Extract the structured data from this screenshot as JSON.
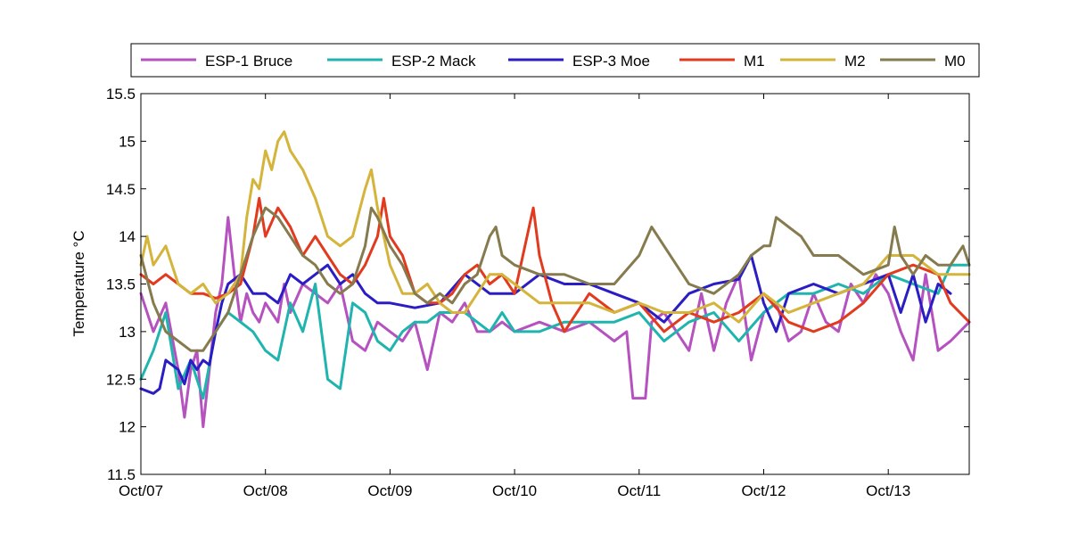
{
  "chart_data": {
    "type": "line",
    "title": "",
    "xlabel": "",
    "ylabel": "Temperature °C",
    "xlim": [
      0,
      6.65
    ],
    "ylim": [
      11.5,
      15.5
    ],
    "x_tick_labels": [
      "Oct/07",
      "Oct/08",
      "Oct/09",
      "Oct/10",
      "Oct/11",
      "Oct/12",
      "Oct/13"
    ],
    "x_tick_values": [
      0,
      1,
      2,
      3,
      4,
      5,
      6
    ],
    "y_ticks": [
      11.5,
      12,
      12.5,
      13,
      13.5,
      14,
      14.5,
      15,
      15.5
    ],
    "grid": false,
    "legend": {
      "position": "top",
      "orientation": "horizontal"
    },
    "series": [
      {
        "name": "ESP-1 Bruce",
        "color": "#B552C0",
        "x": [
          0,
          0.1,
          0.2,
          0.3,
          0.35,
          0.4,
          0.45,
          0.5,
          0.55,
          0.6,
          0.65,
          0.7,
          0.75,
          0.8,
          0.85,
          0.9,
          0.95,
          1.0,
          1.05,
          1.1,
          1.15,
          1.2,
          1.3,
          1.4,
          1.5,
          1.6,
          1.7,
          1.8,
          1.9,
          2.0,
          2.1,
          2.2,
          2.3,
          2.4,
          2.5,
          2.6,
          2.7,
          2.8,
          2.9,
          3.0,
          3.2,
          3.4,
          3.6,
          3.8,
          3.9,
          3.95,
          4.0,
          4.05,
          4.1,
          4.2,
          4.3,
          4.4,
          4.5,
          4.6,
          4.7,
          4.8,
          4.9,
          5.0,
          5.1,
          5.2,
          5.3,
          5.4,
          5.5,
          5.6,
          5.7,
          5.8,
          5.9,
          6.0,
          6.1,
          6.2,
          6.3,
          6.4,
          6.5,
          6.65
        ],
        "values": [
          13.4,
          13.0,
          13.3,
          12.6,
          12.1,
          12.6,
          12.8,
          12.0,
          12.6,
          13.2,
          13.5,
          14.2,
          13.6,
          13.1,
          13.4,
          13.2,
          13.1,
          13.3,
          13.2,
          13.1,
          13.5,
          13.2,
          13.5,
          13.4,
          13.3,
          13.5,
          12.9,
          12.8,
          13.1,
          13.0,
          12.9,
          13.1,
          12.6,
          13.2,
          13.1,
          13.3,
          13.0,
          13.0,
          13.1,
          13.0,
          13.1,
          13.0,
          13.1,
          12.9,
          13.0,
          12.3,
          12.3,
          12.3,
          13.1,
          13.2,
          13.0,
          12.8,
          13.4,
          12.8,
          13.3,
          13.6,
          12.7,
          13.2,
          13.3,
          12.9,
          13.0,
          13.4,
          13.1,
          13.0,
          13.5,
          13.3,
          13.6,
          13.4,
          13.0,
          12.7,
          13.6,
          12.8,
          12.9,
          13.1
        ]
      },
      {
        "name": "ESP-2 Mack",
        "color": "#1FB5AE",
        "x": [
          0,
          0.1,
          0.2,
          0.3,
          0.4,
          0.5,
          0.6,
          0.7,
          0.8,
          0.9,
          1.0,
          1.1,
          1.2,
          1.3,
          1.4,
          1.5,
          1.6,
          1.7,
          1.8,
          1.9,
          2.0,
          2.1,
          2.2,
          2.3,
          2.4,
          2.5,
          2.6,
          2.7,
          2.8,
          2.9,
          3.0,
          3.2,
          3.4,
          3.6,
          3.8,
          4.0,
          4.2,
          4.4,
          4.6,
          4.8,
          5.0,
          5.2,
          5.4,
          5.6,
          5.8,
          6.0,
          6.2,
          6.4,
          6.5,
          6.65
        ],
        "values": [
          12.5,
          12.8,
          13.2,
          12.4,
          12.7,
          12.3,
          13.0,
          13.2,
          13.1,
          13.0,
          12.8,
          12.7,
          13.3,
          13.0,
          13.5,
          12.5,
          12.4,
          13.3,
          13.2,
          12.9,
          12.8,
          13.0,
          13.1,
          13.1,
          13.2,
          13.2,
          13.2,
          13.1,
          13.0,
          13.2,
          13.0,
          13.0,
          13.1,
          13.1,
          13.1,
          13.2,
          12.9,
          13.1,
          13.2,
          12.9,
          13.2,
          13.4,
          13.4,
          13.5,
          13.4,
          13.6,
          13.5,
          13.4,
          13.7,
          13.7
        ]
      },
      {
        "name": "ESP-3 Moe",
        "color": "#2B1DC4",
        "x": [
          0,
          0.1,
          0.15,
          0.2,
          0.3,
          0.35,
          0.4,
          0.45,
          0.5,
          0.55,
          0.6,
          0.65,
          0.7,
          0.8,
          0.9,
          1.0,
          1.1,
          1.2,
          1.3,
          1.4,
          1.5,
          1.6,
          1.7,
          1.8,
          1.9,
          2.0,
          2.2,
          2.4,
          2.6,
          2.8,
          3.0,
          3.2,
          3.4,
          3.6,
          3.8,
          4.0,
          4.2,
          4.4,
          4.6,
          4.8,
          4.9,
          5.0,
          5.1,
          5.2,
          5.4,
          5.6,
          5.8,
          6.0,
          6.1,
          6.2,
          6.3,
          6.4,
          6.5
        ],
        "values": [
          12.4,
          12.35,
          12.4,
          12.7,
          12.6,
          12.45,
          12.7,
          12.6,
          12.7,
          12.65,
          13.0,
          13.3,
          13.5,
          13.6,
          13.4,
          13.4,
          13.3,
          13.6,
          13.5,
          13.6,
          13.7,
          13.5,
          13.6,
          13.4,
          13.3,
          13.3,
          13.25,
          13.3,
          13.6,
          13.4,
          13.4,
          13.6,
          13.5,
          13.5,
          13.4,
          13.3,
          13.1,
          13.4,
          13.5,
          13.55,
          13.8,
          13.3,
          13.0,
          13.4,
          13.5,
          13.4,
          13.5,
          13.6,
          13.2,
          13.6,
          13.1,
          13.5,
          13.4
        ]
      },
      {
        "name": "M1",
        "color": "#E23A1F",
        "x": [
          0,
          0.1,
          0.2,
          0.3,
          0.4,
          0.5,
          0.6,
          0.7,
          0.8,
          0.9,
          0.95,
          1.0,
          1.1,
          1.2,
          1.3,
          1.4,
          1.5,
          1.6,
          1.7,
          1.8,
          1.9,
          1.95,
          2.0,
          2.1,
          2.2,
          2.3,
          2.4,
          2.5,
          2.6,
          2.7,
          2.8,
          2.9,
          3.0,
          3.1,
          3.15,
          3.2,
          3.3,
          3.4,
          3.6,
          3.8,
          4.0,
          4.2,
          4.4,
          4.6,
          4.8,
          5.0,
          5.2,
          5.4,
          5.6,
          5.8,
          6.0,
          6.2,
          6.4,
          6.5,
          6.65
        ],
        "values": [
          13.6,
          13.5,
          13.6,
          13.5,
          13.4,
          13.4,
          13.35,
          13.4,
          13.5,
          14.0,
          14.4,
          14.0,
          14.3,
          14.1,
          13.8,
          14.0,
          13.8,
          13.6,
          13.5,
          13.7,
          14.0,
          14.4,
          14.0,
          13.8,
          13.4,
          13.3,
          13.3,
          13.4,
          13.6,
          13.7,
          13.5,
          13.6,
          13.4,
          14.0,
          14.3,
          13.8,
          13.3,
          13.0,
          13.4,
          13.2,
          13.3,
          13.0,
          13.2,
          13.1,
          13.2,
          13.4,
          13.1,
          13.0,
          13.1,
          13.3,
          13.6,
          13.7,
          13.6,
          13.3,
          13.1
        ]
      },
      {
        "name": "M2",
        "color": "#D4B43A",
        "x": [
          0,
          0.05,
          0.1,
          0.2,
          0.3,
          0.4,
          0.5,
          0.6,
          0.7,
          0.8,
          0.85,
          0.9,
          0.95,
          1.0,
          1.05,
          1.1,
          1.15,
          1.2,
          1.3,
          1.4,
          1.5,
          1.6,
          1.7,
          1.8,
          1.85,
          1.9,
          2.0,
          2.1,
          2.2,
          2.3,
          2.4,
          2.5,
          2.6,
          2.7,
          2.8,
          2.9,
          3.0,
          3.2,
          3.4,
          3.6,
          3.8,
          4.0,
          4.2,
          4.4,
          4.6,
          4.8,
          5.0,
          5.2,
          5.4,
          5.6,
          5.8,
          6.0,
          6.2,
          6.4,
          6.5,
          6.65
        ],
        "values": [
          13.7,
          14.0,
          13.7,
          13.9,
          13.5,
          13.4,
          13.5,
          13.3,
          13.4,
          13.6,
          14.2,
          14.6,
          14.5,
          14.9,
          14.7,
          15.0,
          15.1,
          14.9,
          14.7,
          14.4,
          14.0,
          13.9,
          14.0,
          14.5,
          14.7,
          14.3,
          13.7,
          13.4,
          13.4,
          13.5,
          13.3,
          13.2,
          13.2,
          13.4,
          13.6,
          13.6,
          13.5,
          13.3,
          13.3,
          13.3,
          13.2,
          13.3,
          13.2,
          13.2,
          13.3,
          13.1,
          13.4,
          13.2,
          13.3,
          13.4,
          13.5,
          13.8,
          13.8,
          13.6,
          13.6,
          13.6
        ]
      },
      {
        "name": "M0",
        "color": "#857B4E",
        "x": [
          0,
          0.1,
          0.2,
          0.3,
          0.4,
          0.5,
          0.6,
          0.7,
          0.8,
          0.9,
          1.0,
          1.1,
          1.2,
          1.3,
          1.4,
          1.5,
          1.6,
          1.7,
          1.8,
          1.85,
          1.9,
          2.0,
          2.1,
          2.2,
          2.3,
          2.4,
          2.5,
          2.6,
          2.7,
          2.8,
          2.85,
          2.9,
          3.0,
          3.2,
          3.4,
          3.6,
          3.8,
          4.0,
          4.1,
          4.2,
          4.4,
          4.6,
          4.8,
          4.9,
          5.0,
          5.05,
          5.1,
          5.2,
          5.3,
          5.4,
          5.6,
          5.8,
          6.0,
          6.05,
          6.1,
          6.2,
          6.3,
          6.4,
          6.5,
          6.6,
          6.65
        ],
        "values": [
          13.8,
          13.3,
          13.0,
          12.9,
          12.8,
          12.8,
          13.0,
          13.2,
          13.6,
          14.0,
          14.3,
          14.2,
          14.0,
          13.8,
          13.7,
          13.5,
          13.4,
          13.5,
          13.9,
          14.3,
          14.2,
          13.9,
          13.7,
          13.4,
          13.3,
          13.4,
          13.3,
          13.5,
          13.6,
          14.0,
          14.1,
          13.8,
          13.7,
          13.6,
          13.6,
          13.5,
          13.5,
          13.8,
          14.1,
          13.9,
          13.5,
          13.4,
          13.6,
          13.8,
          13.9,
          13.9,
          14.2,
          14.1,
          14.0,
          13.8,
          13.8,
          13.6,
          13.7,
          14.1,
          13.8,
          13.6,
          13.8,
          13.7,
          13.7,
          13.9,
          13.7
        ]
      }
    ]
  }
}
